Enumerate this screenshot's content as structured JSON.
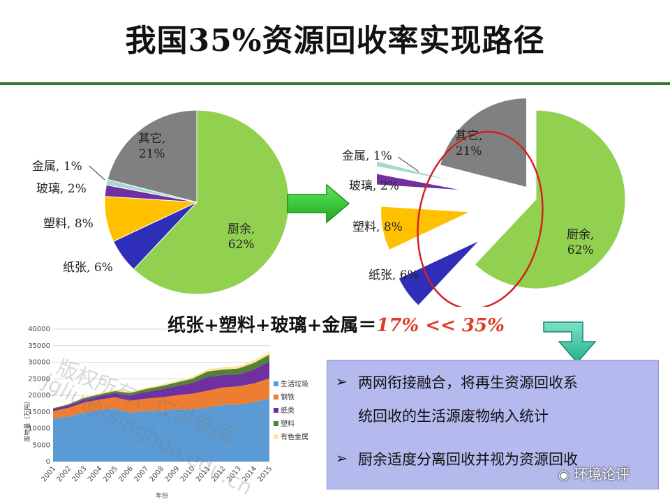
{
  "title": "我国35%资源回收率实现路径",
  "colors": {
    "kitchen": "#92d050",
    "paper": "#2e2eb8",
    "plastic": "#ffc000",
    "glass": "#7030a0",
    "metal": "#a8d8d0",
    "other": "#808080",
    "accent_red": "#e03a2a",
    "arrow_green": "#33cc33",
    "box_fill": "#b4b9ee",
    "rule_green": "#2e7a2e"
  },
  "chart_data": [
    {
      "type": "pie",
      "title": "",
      "slices": [
        {
          "label": "厨余,",
          "pct_text": "62%",
          "value": 62
        },
        {
          "label": "纸张,",
          "pct_text": "6%",
          "value": 6
        },
        {
          "label": "塑料,",
          "pct_text": "8%",
          "value": 8
        },
        {
          "label": "玻璃,",
          "pct_text": "2%",
          "value": 2
        },
        {
          "label": "金属,",
          "pct_text": "1%",
          "value": 1
        },
        {
          "label": "其它,",
          "pct_text": "21%",
          "value": 21
        }
      ]
    },
    {
      "type": "pie",
      "title": "",
      "exploded": [
        "纸张",
        "塑料",
        "玻璃",
        "金属"
      ],
      "highlight": "red circle around exploded slices",
      "slices": [
        {
          "label": "厨余,",
          "pct_text": "62%",
          "value": 62
        },
        {
          "label": "纸张,",
          "pct_text": "6%",
          "value": 6
        },
        {
          "label": "塑料,",
          "pct_text": "8%",
          "value": 8
        },
        {
          "label": "玻璃,",
          "pct_text": "2%",
          "value": 2
        },
        {
          "label": "金属,",
          "pct_text": "1%",
          "value": 1
        },
        {
          "label": "其它,",
          "pct_text": "21%",
          "value": 21
        }
      ]
    },
    {
      "type": "area",
      "stacked": true,
      "x": [
        "2001",
        "2002",
        "2003",
        "2004",
        "2005",
        "2006",
        "2007",
        "2008",
        "2009",
        "2010",
        "2011",
        "2012",
        "2013",
        "2014",
        "2015"
      ],
      "ylabel": "废物量（万吨）",
      "xlabel": "年份",
      "ylim": [
        0,
        40000
      ],
      "yticks": [
        "0",
        "5000",
        "10000",
        "15000",
        "20000",
        "25000",
        "30000",
        "35000",
        "40000"
      ],
      "legend_position": "right",
      "series": [
        {
          "name": "生活垃圾",
          "color": "#5b9bd5",
          "values": [
            13000,
            13600,
            14800,
            15500,
            16000,
            14800,
            15200,
            15400,
            15700,
            15800,
            16400,
            17100,
            17200,
            17900,
            19100
          ]
        },
        {
          "name": "钢铁",
          "color": "#ed7d31",
          "values": [
            2200,
            2600,
            3000,
            3200,
            3400,
            3600,
            3800,
            4000,
            4300,
            4700,
            5000,
            5300,
            5500,
            5700,
            6000
          ]
        },
        {
          "name": "纸类",
          "color": "#7030a0",
          "values": [
            700,
            800,
            1000,
            1100,
            1300,
            1600,
            2000,
            2400,
            2800,
            3200,
            4200,
            3700,
            3600,
            4200,
            5100
          ]
        },
        {
          "name": "塑料",
          "color": "#548235",
          "values": [
            200,
            300,
            400,
            500,
            600,
            700,
            900,
            1000,
            1100,
            1300,
            1600,
            1700,
            1800,
            2000,
            2100
          ]
        },
        {
          "name": "有色金属",
          "color": "#ffe699",
          "values": [
            100,
            150,
            200,
            250,
            300,
            350,
            400,
            450,
            500,
            550,
            700,
            700,
            750,
            800,
            900
          ]
        }
      ]
    }
  ],
  "formula": {
    "text": "纸张+塑料+玻璃+金属＝",
    "highlight": "17% << 35%"
  },
  "notes": [
    {
      "bullet": "➢",
      "line1": "两网衔接融合，将再生资源回收系",
      "line2": "统回收的生活源废物纳入统计"
    },
    {
      "bullet": "➢",
      "line1": "厨余适度分离回收并视为资源回收"
    }
  ],
  "watermark": {
    "line1": "版权所有，仅供参阅",
    "line2": "jgliu@tsinghua.edu.cn"
  },
  "footer_logo": "环境论评"
}
